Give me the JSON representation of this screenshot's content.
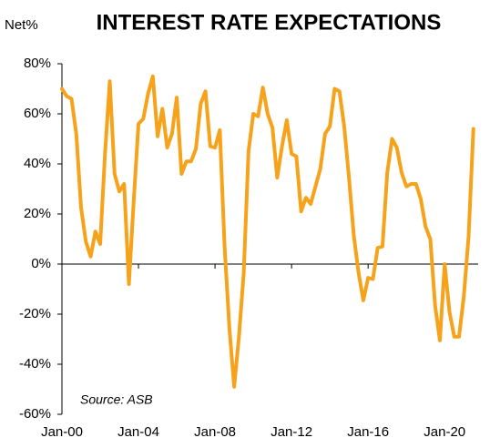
{
  "chart_data": {
    "type": "line",
    "title": "INTEREST RATE EXPECTATIONS",
    "y_label": "Net%",
    "annotation": "Source: ASB",
    "color": "#F7A21B",
    "x": [
      2000,
      2000.25,
      2000.5,
      2000.75,
      2001,
      2001.25,
      2001.5,
      2001.75,
      2002,
      2002.25,
      2002.5,
      2002.75,
      2003,
      2003.25,
      2003.5,
      2003.75,
      2004,
      2004.25,
      2004.5,
      2004.75,
      2005,
      2005.25,
      2005.5,
      2005.75,
      2006,
      2006.25,
      2006.5,
      2006.75,
      2007,
      2007.25,
      2007.5,
      2007.75,
      2008,
      2008.25,
      2008.5,
      2008.75,
      2009,
      2009.25,
      2009.5,
      2009.75,
      2010,
      2010.25,
      2010.5,
      2010.75,
      2011,
      2011.25,
      2011.5,
      2011.75,
      2012,
      2012.25,
      2012.5,
      2012.75,
      2013,
      2013.25,
      2013.5,
      2013.75,
      2014,
      2014.25,
      2014.5,
      2014.75,
      2015,
      2015.25,
      2015.5,
      2015.75,
      2016,
      2016.25,
      2016.5,
      2016.75,
      2017,
      2017.25,
      2017.5,
      2017.75,
      2018,
      2018.25,
      2018.5,
      2018.75,
      2019,
      2019.25,
      2019.5,
      2019.75,
      2020,
      2020.25,
      2020.5,
      2020.75,
      2021,
      2021.25,
      2021.5
    ],
    "values": [
      70,
      67,
      66,
      52,
      22.5,
      9,
      3,
      13,
      8,
      44,
      73,
      36,
      29,
      32,
      -8,
      25,
      56,
      58,
      68,
      75,
      51,
      62,
      46.5,
      52,
      66.5,
      36,
      41,
      41,
      46,
      64,
      69,
      47,
      46.5,
      53.5,
      7,
      -25.5,
      -49,
      -29,
      -3.5,
      45,
      60,
      59,
      70.5,
      60,
      54.5,
      34.5,
      47,
      57.5,
      44,
      43,
      21,
      26.5,
      24,
      31,
      38,
      52,
      55,
      70,
      69,
      55,
      34.5,
      11.5,
      -3.5,
      -14.5,
      -5.5,
      -6,
      6.5,
      7,
      36.5,
      50,
      46.5,
      36.5,
      31,
      32,
      32,
      26,
      15,
      10,
      -16.5,
      -30.5,
      0,
      -19,
      -29,
      -29,
      -13,
      11,
      54
    ],
    "xlim": [
      2000,
      2021.75
    ],
    "xticks": [
      {
        "value": 2000,
        "label": "Jan-00"
      },
      {
        "value": 2004,
        "label": "Jan-04"
      },
      {
        "value": 2008,
        "label": "Jan-08"
      },
      {
        "value": 2012,
        "label": "Jan-12"
      },
      {
        "value": 2016,
        "label": "Jan-16"
      },
      {
        "value": 2020,
        "label": "Jan-20"
      }
    ],
    "ylim": [
      -60,
      80
    ],
    "yticks": [
      {
        "value": -60,
        "label": "-60%"
      },
      {
        "value": -40,
        "label": "-40%"
      },
      {
        "value": -20,
        "label": "-20%"
      },
      {
        "value": 0,
        "label": "0%"
      },
      {
        "value": 20,
        "label": "20%"
      },
      {
        "value": 40,
        "label": "40%"
      },
      {
        "value": 60,
        "label": "60%"
      },
      {
        "value": 80,
        "label": "80%"
      }
    ],
    "grid": false
  }
}
